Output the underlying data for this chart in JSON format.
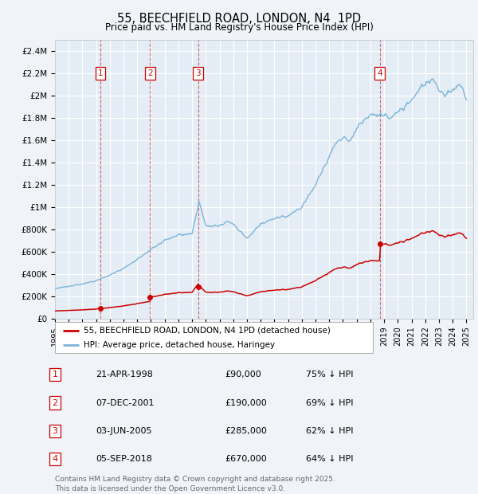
{
  "title": "55, BEECHFIELD ROAD, LONDON, N4  1PD",
  "subtitle": "Price paid vs. HM Land Registry's House Price Index (HPI)",
  "background_color": "#f0f4f8",
  "plot_bg_color": "#e4edf5",
  "sale_transactions": [
    {
      "label": "1",
      "date_num": 1998.31,
      "price": 90000
    },
    {
      "label": "2",
      "date_num": 2001.93,
      "price": 190000
    },
    {
      "label": "3",
      "date_num": 2005.43,
      "price": 285000
    },
    {
      "label": "4",
      "date_num": 2018.68,
      "price": 670000
    }
  ],
  "sale_labels": [
    {
      "num": "1",
      "date": "21-APR-1998",
      "price": "£90,000",
      "hpi": "75% ↓ HPI"
    },
    {
      "num": "2",
      "date": "07-DEC-2001",
      "price": "£190,000",
      "hpi": "69% ↓ HPI"
    },
    {
      "num": "3",
      "date": "03-JUN-2005",
      "price": "£285,000",
      "hpi": "62% ↓ HPI"
    },
    {
      "num": "4",
      "date": "05-SEP-2018",
      "price": "£670,000",
      "hpi": "64% ↓ HPI"
    }
  ],
  "xmin": 1995.0,
  "xmax": 2025.5,
  "ymin": 0,
  "ymax": 2500000,
  "yticks": [
    0,
    200000,
    400000,
    600000,
    800000,
    1000000,
    1200000,
    1400000,
    1600000,
    1800000,
    2000000,
    2200000,
    2400000
  ],
  "ytick_labels": [
    "£0",
    "£200K",
    "£400K",
    "£600K",
    "£800K",
    "£1M",
    "£1.2M",
    "£1.4M",
    "£1.6M",
    "£1.8M",
    "£2M",
    "£2.2M",
    "£2.4M"
  ],
  "hpi_color": "#7ab4d8",
  "sale_color": "#cc0000",
  "dashed_color": "#cc0000",
  "legend_line1": "55, BEECHFIELD ROAD, LONDON, N4 1PD (detached house)",
  "legend_line2": "HPI: Average price, detached house, Haringey",
  "footer": "Contains HM Land Registry data © Crown copyright and database right 2025.\nThis data is licensed under the Open Government Licence v3.0."
}
